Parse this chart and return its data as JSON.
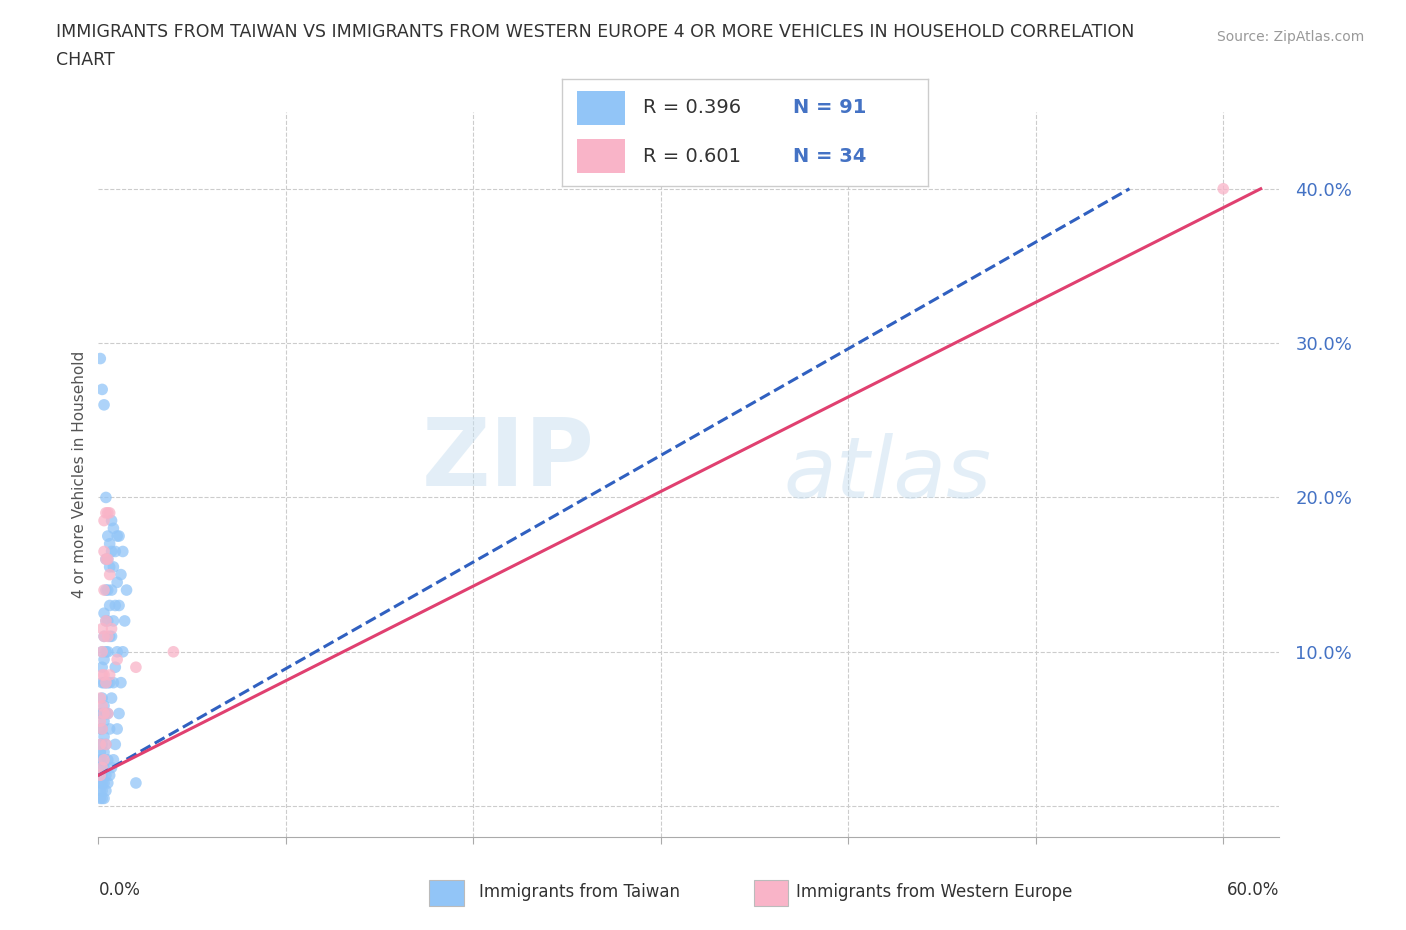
{
  "title": "IMMIGRANTS FROM TAIWAN VS IMMIGRANTS FROM WESTERN EUROPE 4 OR MORE VEHICLES IN HOUSEHOLD CORRELATION\nCHART",
  "source": "Source: ZipAtlas.com",
  "xlabel_bottom_left": "0.0%",
  "xlabel_bottom_right": "60.0%",
  "ylabel": "4 or more Vehicles in Household",
  "xlim": [
    0.0,
    0.63
  ],
  "ylim": [
    -0.02,
    0.45
  ],
  "yticks": [
    0.0,
    0.1,
    0.2,
    0.3,
    0.4
  ],
  "ytick_labels": [
    "",
    "10.0%",
    "20.0%",
    "30.0%",
    "40.0%"
  ],
  "taiwan_color": "#92C5F7",
  "western_color": "#F9B4C8",
  "taiwan_R": 0.396,
  "taiwan_N": 91,
  "western_R": 0.601,
  "western_N": 34,
  "taiwan_line_color": "#3060c0",
  "western_line_color": "#e04070",
  "taiwan_scatter": [
    [
      0.001,
      0.005
    ],
    [
      0.001,
      0.01
    ],
    [
      0.001,
      0.015
    ],
    [
      0.001,
      0.02
    ],
    [
      0.001,
      0.025
    ],
    [
      0.001,
      0.03
    ],
    [
      0.001,
      0.035
    ],
    [
      0.001,
      0.04
    ],
    [
      0.001,
      0.05
    ],
    [
      0.001,
      0.06
    ],
    [
      0.002,
      0.005
    ],
    [
      0.002,
      0.01
    ],
    [
      0.002,
      0.015
    ],
    [
      0.002,
      0.02
    ],
    [
      0.002,
      0.03
    ],
    [
      0.002,
      0.04
    ],
    [
      0.002,
      0.05
    ],
    [
      0.002,
      0.06
    ],
    [
      0.002,
      0.07
    ],
    [
      0.002,
      0.08
    ],
    [
      0.002,
      0.09
    ],
    [
      0.002,
      0.1
    ],
    [
      0.003,
      0.005
    ],
    [
      0.003,
      0.015
    ],
    [
      0.003,
      0.025
    ],
    [
      0.003,
      0.035
    ],
    [
      0.003,
      0.045
    ],
    [
      0.003,
      0.055
    ],
    [
      0.003,
      0.065
    ],
    [
      0.003,
      0.08
    ],
    [
      0.003,
      0.095
    ],
    [
      0.003,
      0.11
    ],
    [
      0.003,
      0.125
    ],
    [
      0.004,
      0.01
    ],
    [
      0.004,
      0.02
    ],
    [
      0.004,
      0.04
    ],
    [
      0.004,
      0.06
    ],
    [
      0.004,
      0.08
    ],
    [
      0.004,
      0.1
    ],
    [
      0.004,
      0.12
    ],
    [
      0.004,
      0.14
    ],
    [
      0.004,
      0.16
    ],
    [
      0.005,
      0.015
    ],
    [
      0.005,
      0.03
    ],
    [
      0.005,
      0.06
    ],
    [
      0.005,
      0.08
    ],
    [
      0.005,
      0.1
    ],
    [
      0.005,
      0.12
    ],
    [
      0.005,
      0.14
    ],
    [
      0.005,
      0.16
    ],
    [
      0.005,
      0.175
    ],
    [
      0.006,
      0.02
    ],
    [
      0.006,
      0.05
    ],
    [
      0.006,
      0.08
    ],
    [
      0.006,
      0.11
    ],
    [
      0.006,
      0.13
    ],
    [
      0.006,
      0.155
    ],
    [
      0.006,
      0.17
    ],
    [
      0.007,
      0.025
    ],
    [
      0.007,
      0.07
    ],
    [
      0.007,
      0.11
    ],
    [
      0.007,
      0.14
    ],
    [
      0.007,
      0.165
    ],
    [
      0.007,
      0.185
    ],
    [
      0.008,
      0.03
    ],
    [
      0.008,
      0.08
    ],
    [
      0.008,
      0.12
    ],
    [
      0.008,
      0.155
    ],
    [
      0.008,
      0.18
    ],
    [
      0.009,
      0.04
    ],
    [
      0.009,
      0.09
    ],
    [
      0.009,
      0.13
    ],
    [
      0.009,
      0.165
    ],
    [
      0.01,
      0.05
    ],
    [
      0.01,
      0.1
    ],
    [
      0.01,
      0.145
    ],
    [
      0.01,
      0.175
    ],
    [
      0.011,
      0.06
    ],
    [
      0.011,
      0.13
    ],
    [
      0.011,
      0.175
    ],
    [
      0.012,
      0.08
    ],
    [
      0.012,
      0.15
    ],
    [
      0.013,
      0.1
    ],
    [
      0.013,
      0.165
    ],
    [
      0.014,
      0.12
    ],
    [
      0.015,
      0.14
    ],
    [
      0.002,
      0.27
    ],
    [
      0.003,
      0.26
    ],
    [
      0.004,
      0.2
    ],
    [
      0.001,
      0.29
    ],
    [
      0.02,
      0.015
    ]
  ],
  "western_scatter": [
    [
      0.001,
      0.02
    ],
    [
      0.001,
      0.04
    ],
    [
      0.001,
      0.055
    ],
    [
      0.001,
      0.07
    ],
    [
      0.002,
      0.025
    ],
    [
      0.002,
      0.05
    ],
    [
      0.002,
      0.065
    ],
    [
      0.002,
      0.085
    ],
    [
      0.002,
      0.1
    ],
    [
      0.002,
      0.115
    ],
    [
      0.003,
      0.03
    ],
    [
      0.003,
      0.06
    ],
    [
      0.003,
      0.085
    ],
    [
      0.003,
      0.11
    ],
    [
      0.003,
      0.14
    ],
    [
      0.003,
      0.165
    ],
    [
      0.003,
      0.185
    ],
    [
      0.004,
      0.04
    ],
    [
      0.004,
      0.08
    ],
    [
      0.004,
      0.12
    ],
    [
      0.004,
      0.16
    ],
    [
      0.004,
      0.19
    ],
    [
      0.005,
      0.06
    ],
    [
      0.005,
      0.11
    ],
    [
      0.005,
      0.16
    ],
    [
      0.005,
      0.19
    ],
    [
      0.006,
      0.085
    ],
    [
      0.006,
      0.15
    ],
    [
      0.006,
      0.19
    ],
    [
      0.007,
      0.115
    ],
    [
      0.01,
      0.095
    ],
    [
      0.02,
      0.09
    ],
    [
      0.04,
      0.1
    ],
    [
      0.6,
      0.4
    ]
  ],
  "watermark_zip": "ZIP",
  "watermark_atlas": "atlas",
  "background_color": "#ffffff",
  "grid_color": "#cccccc",
  "grid_style": "--"
}
